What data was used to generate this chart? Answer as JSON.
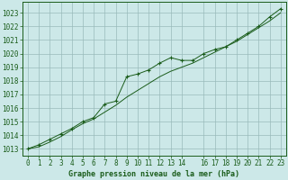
{
  "title": "Graphe pression niveau de la mer (hPa)",
  "bg_color": "#cce8e8",
  "grid_color": "#99bbbb",
  "line_color": "#1a5c1a",
  "marker_color": "#1a5c1a",
  "ylim": [
    1012.5,
    1023.8
  ],
  "xlim": [
    -0.5,
    23.5
  ],
  "yticks": [
    1013,
    1014,
    1015,
    1016,
    1017,
    1018,
    1019,
    1020,
    1021,
    1022,
    1023
  ],
  "xticks": [
    0,
    1,
    2,
    3,
    4,
    5,
    6,
    7,
    8,
    9,
    10,
    11,
    12,
    13,
    14,
    16,
    17,
    18,
    19,
    20,
    21,
    22,
    23
  ],
  "xtick_labels": [
    "0",
    "1",
    "2",
    "3",
    "4",
    "5",
    "6",
    "7",
    "8",
    "9",
    "10",
    "11",
    "12",
    "13",
    "14",
    "16",
    "17",
    "18",
    "19",
    "20",
    "21",
    "22",
    "23"
  ],
  "hours": [
    0,
    1,
    2,
    3,
    4,
    5,
    6,
    7,
    8,
    9,
    10,
    11,
    12,
    13,
    14,
    15,
    16,
    17,
    18,
    19,
    20,
    21,
    22,
    23
  ],
  "pressure_main": [
    1013.0,
    1013.3,
    1013.7,
    1014.1,
    1014.5,
    1015.0,
    1015.3,
    1016.3,
    1016.5,
    1018.3,
    1018.5,
    1018.8,
    1019.3,
    1019.7,
    1019.5,
    1019.5,
    1020.0,
    1020.3,
    1020.5,
    1021.0,
    1021.5,
    1022.0,
    1022.7,
    1023.3
  ],
  "pressure_smooth": [
    1013.0,
    1013.15,
    1013.5,
    1013.9,
    1014.4,
    1014.85,
    1015.2,
    1015.7,
    1016.2,
    1016.8,
    1017.3,
    1017.8,
    1018.3,
    1018.7,
    1019.0,
    1019.3,
    1019.7,
    1020.1,
    1020.5,
    1020.9,
    1021.4,
    1021.9,
    1022.4,
    1023.0
  ]
}
